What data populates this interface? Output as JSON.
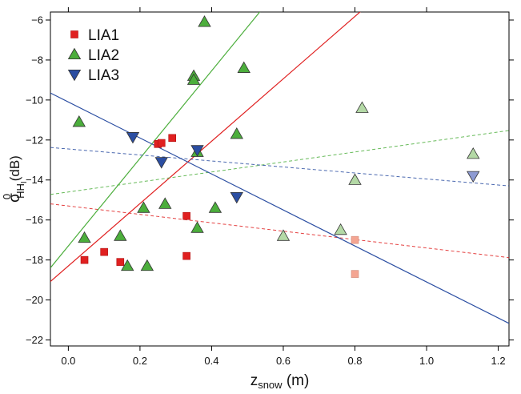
{
  "chart_data": {
    "type": "scatter",
    "title": "",
    "xlabel": {
      "main": "z",
      "sub": "snow",
      "unit": " (m)"
    },
    "ylabel": {
      "main": "σ",
      "sup": "0",
      "sub": "HH",
      "subsub": "I",
      "unit": "(dB)"
    },
    "xlim": [
      -0.05,
      1.23
    ],
    "ylim": [
      -22.3,
      -5.6
    ],
    "x_ticks": [
      0.0,
      0.2,
      0.4,
      0.6,
      0.8,
      1.0,
      1.2
    ],
    "x_tick_labels": [
      "0.0",
      "0.2",
      "0.4",
      "0.6",
      "0.8",
      "1.0",
      "1.2"
    ],
    "y_ticks": [
      -22,
      -20,
      -18,
      -16,
      -14,
      -12,
      -10,
      -8,
      -6
    ],
    "y_tick_labels": [
      "−22",
      "−20",
      "−18",
      "−16",
      "−14",
      "−12",
      "−10",
      "−8",
      "−6"
    ],
    "top_ticks": [
      0.0,
      0.2,
      0.4,
      0.6,
      0.8,
      1.0
    ],
    "right_ticks": [
      -22,
      -20,
      -18,
      -16,
      -14,
      -12,
      -10,
      -8,
      -6
    ],
    "grid": false,
    "legend_position": "top-left",
    "series": [
      {
        "name": "LIA1",
        "marker": "square",
        "color": "#e02020",
        "light_color": "#f4a592",
        "points": [
          {
            "x": 0.045,
            "y": -18.0
          },
          {
            "x": 0.1,
            "y": -17.6
          },
          {
            "x": 0.145,
            "y": -18.1
          },
          {
            "x": 0.25,
            "y": -12.2
          },
          {
            "x": 0.26,
            "y": -12.15
          },
          {
            "x": 0.29,
            "y": -11.9
          },
          {
            "x": 0.33,
            "y": -15.8
          },
          {
            "x": 0.33,
            "y": -17.8
          }
        ],
        "faded_points": [
          {
            "x": 0.8,
            "y": -17.0
          },
          {
            "x": 0.8,
            "y": -18.7
          }
        ],
        "fit_solid": {
          "intercept": -18.3,
          "slope": 15.6
        },
        "fit_dashed": {
          "intercept": -15.3,
          "slope": -2.1
        }
      },
      {
        "name": "LIA2",
        "marker": "triangle-up",
        "color": "#4cae3c",
        "light_color": "#b4d9a6",
        "points": [
          {
            "x": 0.03,
            "y": -11.1
          },
          {
            "x": 0.045,
            "y": -16.9
          },
          {
            "x": 0.145,
            "y": -16.8
          },
          {
            "x": 0.165,
            "y": -18.3
          },
          {
            "x": 0.21,
            "y": -15.4
          },
          {
            "x": 0.22,
            "y": -18.3
          },
          {
            "x": 0.27,
            "y": -15.2
          },
          {
            "x": 0.35,
            "y": -8.8
          },
          {
            "x": 0.35,
            "y": -9.0
          },
          {
            "x": 0.36,
            "y": -12.6
          },
          {
            "x": 0.36,
            "y": -16.4
          },
          {
            "x": 0.38,
            "y": -6.1
          },
          {
            "x": 0.41,
            "y": -15.4
          },
          {
            "x": 0.47,
            "y": -11.7
          },
          {
            "x": 0.49,
            "y": -8.4
          }
        ],
        "faded_points": [
          {
            "x": 0.6,
            "y": -16.8
          },
          {
            "x": 0.76,
            "y": -16.5
          },
          {
            "x": 0.8,
            "y": -14.0
          },
          {
            "x": 0.82,
            "y": -10.4
          },
          {
            "x": 1.13,
            "y": -12.7
          }
        ],
        "fit_solid": {
          "intercept": -17.3,
          "slope": 21.9
        },
        "fit_dashed": {
          "intercept": -14.6,
          "slope": 2.5
        }
      },
      {
        "name": "LIA3",
        "marker": "triangle-down",
        "color": "#2b4ea2",
        "light_color": "#8d9ad2",
        "points": [
          {
            "x": 0.18,
            "y": -11.85
          },
          {
            "x": 0.26,
            "y": -13.1
          },
          {
            "x": 0.36,
            "y": -12.5
          },
          {
            "x": 0.47,
            "y": -14.85
          }
        ],
        "faded_points": [
          {
            "x": 1.13,
            "y": -13.8
          }
        ],
        "fit_solid": {
          "intercept": -10.1,
          "slope": -9.0
        },
        "fit_dashed": {
          "intercept": -12.45,
          "slope": -1.5
        }
      }
    ]
  }
}
